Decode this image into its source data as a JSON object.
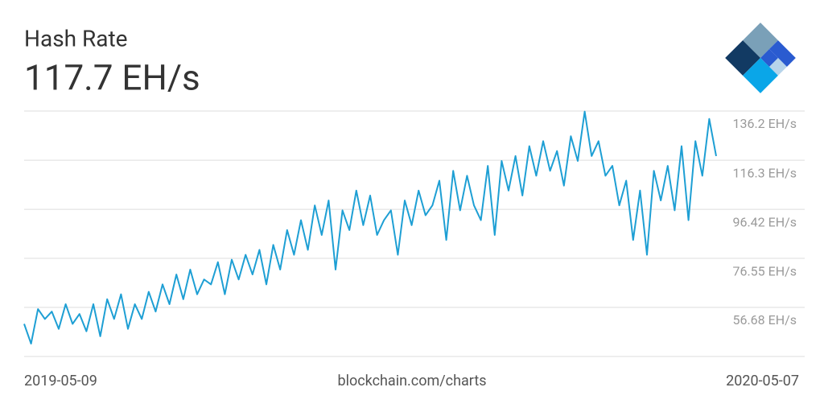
{
  "chart_data": {
    "type": "line",
    "title": "Hash Rate",
    "subtitle": "117.7 EH/s",
    "source": "blockchain.com/charts",
    "color": "#1e9fd4",
    "values": [
      50,
      42,
      56,
      52,
      55,
      48,
      58,
      50,
      54,
      47,
      58,
      45,
      60,
      52,
      62,
      48,
      58,
      52,
      63,
      55,
      66,
      58,
      70,
      60,
      72,
      62,
      68,
      66,
      75,
      62,
      76,
      68,
      78,
      70,
      80,
      66,
      82,
      72,
      88,
      78,
      92,
      80,
      98,
      86,
      100,
      72,
      96,
      88,
      104,
      90,
      102,
      86,
      92,
      96,
      78,
      100,
      90,
      104,
      94,
      98,
      108,
      84,
      112,
      96,
      110,
      98,
      92,
      114,
      86,
      116,
      104,
      118,
      102,
      122,
      110,
      124,
      112,
      120,
      106,
      126,
      116,
      136,
      118,
      124,
      110,
      114,
      98,
      108,
      84,
      104,
      78,
      112,
      100,
      114,
      96,
      122,
      92,
      124,
      110,
      133,
      118
    ],
    "xlim": [
      0,
      100
    ],
    "xticks": [
      {
        "value": 0,
        "label": "2019-05-09"
      },
      {
        "value": 100,
        "label": "2020-05-07"
      }
    ],
    "ylim": [
      36.81,
      136.2
    ],
    "yticks": [
      {
        "value": 56.68,
        "label": "56.68 EH/s"
      },
      {
        "value": 76.55,
        "label": "76.55 EH/s"
      },
      {
        "value": 96.42,
        "label": "96.42 EH/s"
      },
      {
        "value": 116.3,
        "label": "116.3 EH/s"
      },
      {
        "value": 136.2,
        "label": "136.2 EH/s"
      }
    ],
    "grid": true
  }
}
